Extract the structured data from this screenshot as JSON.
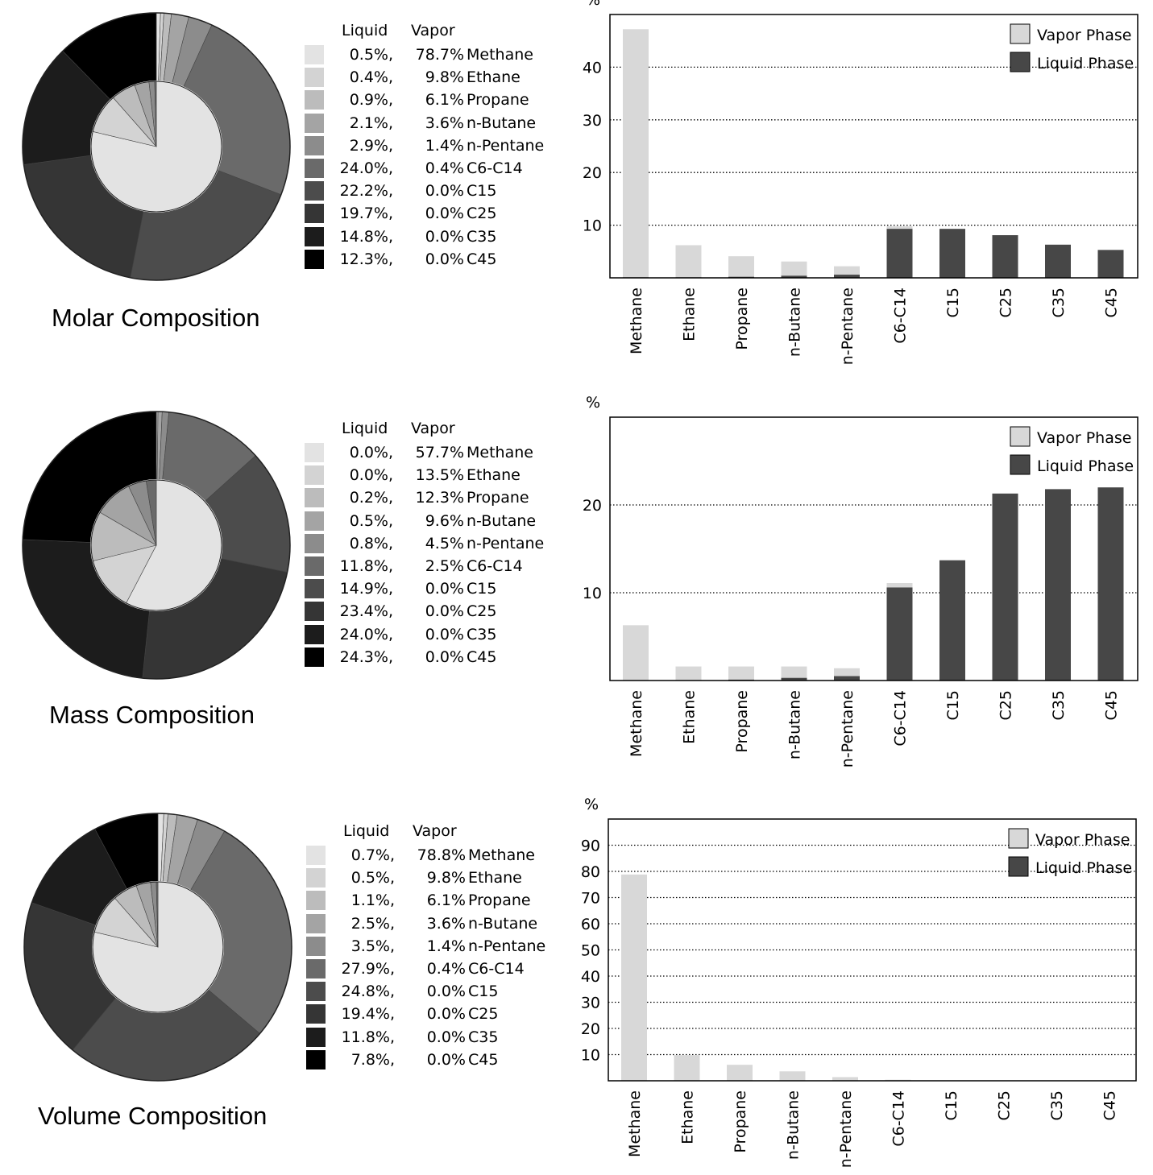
{
  "legend_headers": {
    "liquid": "Liquid",
    "vapor": "Vapor"
  },
  "bar_legend": {
    "vapor": "Vapor Phase",
    "liquid": "Liquid Phase"
  },
  "bar_colors": {
    "vapor": "#d8d8d8",
    "liquid": "#474747"
  },
  "shades": [
    "#e3e3e3",
    "#d3d3d3",
    "#bcbcbc",
    "#a4a4a4",
    "#8c8c8c",
    "#6a6a6a",
    "#4c4c4c",
    "#353535",
    "#1c1c1c",
    "#000000"
  ],
  "panels": [
    {
      "caption": "Molar Composition",
      "chart_data": {
        "type": "pie",
        "categories": [
          "Methane",
          "Ethane",
          "Propane",
          "n-Butane",
          "n-Pentane",
          "C6-C14",
          "C15",
          "C25",
          "C35",
          "C45"
        ],
        "series": [
          {
            "name": "Liquid",
            "values": [
              0.5,
              0.4,
              0.9,
              2.1,
              2.9,
              24.0,
              22.2,
              19.7,
              14.8,
              12.3
            ],
            "labels": [
              "0.5%,",
              "0.4%,",
              "0.9%,",
              "2.1%,",
              "2.9%,",
              "24.0%,",
              "22.2%,",
              "19.7%,",
              "14.8%,",
              "12.3%,"
            ]
          },
          {
            "name": "Vapor",
            "values": [
              78.7,
              9.8,
              6.1,
              3.6,
              1.4,
              0.4,
              0.0,
              0.0,
              0.0,
              0.0
            ],
            "labels": [
              "78.7%",
              "9.8%",
              "6.1%",
              "3.6%",
              "1.4%",
              "0.4%",
              "0.0%",
              "0.0%",
              "0.0%",
              "0.0%"
            ]
          }
        ],
        "outer_ring": "Liquid",
        "inner_disc": "Vapor"
      },
      "bar_chart": {
        "type": "bar",
        "ylabel": "%",
        "ylim": [
          0,
          50
        ],
        "yticks": [
          10,
          20,
          30,
          40
        ],
        "grid": "dotted",
        "legend": "top-right",
        "categories": [
          "Methane",
          "Ethane",
          "Propane",
          "n-Butane",
          "n-Pentane",
          "C6-C14",
          "C15",
          "C25",
          "C35",
          "C45"
        ],
        "series": [
          {
            "name": "Vapor Phase",
            "values": [
              47.2,
              6.2,
              4.1,
              3.1,
              2.2,
              9.8,
              0,
              0,
              0,
              0
            ]
          },
          {
            "name": "Liquid Phase",
            "values": [
              0.1,
              0.1,
              0.2,
              0.4,
              0.6,
              9.3,
              9.3,
              8.1,
              6.3,
              5.3
            ]
          }
        ]
      }
    },
    {
      "caption": "Mass Composition",
      "chart_data": {
        "type": "pie",
        "categories": [
          "Methane",
          "Ethane",
          "Propane",
          "n-Butane",
          "n-Pentane",
          "C6-C14",
          "C15",
          "C25",
          "C35",
          "C45"
        ],
        "series": [
          {
            "name": "Liquid",
            "values": [
              0.0,
              0.0,
              0.2,
              0.5,
              0.8,
              11.8,
              14.9,
              23.4,
              24.0,
              24.3
            ],
            "labels": [
              "0.0%,",
              "0.0%,",
              "0.2%,",
              "0.5%,",
              "0.8%,",
              "11.8%,",
              "14.9%,",
              "23.4%,",
              "24.0%,",
              "24.3%,"
            ]
          },
          {
            "name": "Vapor",
            "values": [
              57.7,
              13.5,
              12.3,
              9.6,
              4.5,
              2.5,
              0.0,
              0.0,
              0.0,
              0.0
            ],
            "labels": [
              "57.7%",
              "13.5%",
              "12.3%",
              "9.6%",
              "4.5%",
              "2.5%",
              "0.0%",
              "0.0%",
              "0.0%",
              "0.0%"
            ]
          }
        ],
        "outer_ring": "Liquid",
        "inner_disc": "Vapor"
      },
      "bar_chart": {
        "type": "bar",
        "ylabel": "%",
        "ylim": [
          0,
          30
        ],
        "yticks": [
          10,
          20
        ],
        "grid": "dotted",
        "legend": "top-right",
        "categories": [
          "Methane",
          "Ethane",
          "Propane",
          "n-Butane",
          "n-Pentane",
          "C6-C14",
          "C15",
          "C25",
          "C35",
          "C45"
        ],
        "series": [
          {
            "name": "Vapor Phase",
            "values": [
              6.3,
              1.6,
              1.6,
              1.6,
              1.4,
              11.1,
              0,
              0,
              0,
              0
            ]
          },
          {
            "name": "Liquid Phase",
            "values": [
              0,
              0,
              0.1,
              0.3,
              0.5,
              10.6,
              13.7,
              21.3,
              21.8,
              22.0
            ]
          }
        ]
      }
    },
    {
      "caption": "Volume Composition",
      "chart_data": {
        "type": "pie",
        "categories": [
          "Methane",
          "Ethane",
          "Propane",
          "n-Butane",
          "n-Pentane",
          "C6-C14",
          "C15",
          "C25",
          "C35",
          "C45"
        ],
        "series": [
          {
            "name": "Liquid",
            "values": [
              0.7,
              0.5,
              1.1,
              2.5,
              3.5,
              27.9,
              24.8,
              19.4,
              11.8,
              7.8
            ],
            "labels": [
              "0.7%,",
              "0.5%,",
              "1.1%,",
              "2.5%,",
              "3.5%,",
              "27.9%,",
              "24.8%,",
              "19.4%,",
              "11.8%,",
              "7.8%,"
            ]
          },
          {
            "name": "Vapor",
            "values": [
              78.8,
              9.8,
              6.1,
              3.6,
              1.4,
              0.4,
              0.0,
              0.0,
              0.0,
              0.0
            ],
            "labels": [
              "78.8%",
              "9.8%",
              "6.1%",
              "3.6%",
              "1.4%",
              "0.4%",
              "0.0%",
              "0.0%",
              "0.0%",
              "0.0%"
            ]
          }
        ],
        "outer_ring": "Liquid",
        "inner_disc": "Vapor"
      },
      "bar_chart": {
        "type": "bar",
        "ylabel": "%",
        "ylim": [
          0,
          100
        ],
        "yticks": [
          10,
          20,
          30,
          40,
          50,
          60,
          70,
          80,
          90
        ],
        "grid": "dotted",
        "legend": "top-right",
        "categories": [
          "Methane",
          "Ethane",
          "Propane",
          "n-Butane",
          "n-Pentane",
          "C6-C14",
          "C15",
          "C25",
          "C35",
          "C45"
        ],
        "series": [
          {
            "name": "Vapor Phase",
            "values": [
              78.8,
              9.8,
              6.1,
              3.6,
              1.4,
              0.4,
              0,
              0,
              0,
              0
            ]
          },
          {
            "name": "Liquid Phase",
            "values": [
              0,
              0,
              0,
              0,
              0,
              0,
              0,
              0,
              0,
              0
            ]
          }
        ]
      }
    }
  ]
}
